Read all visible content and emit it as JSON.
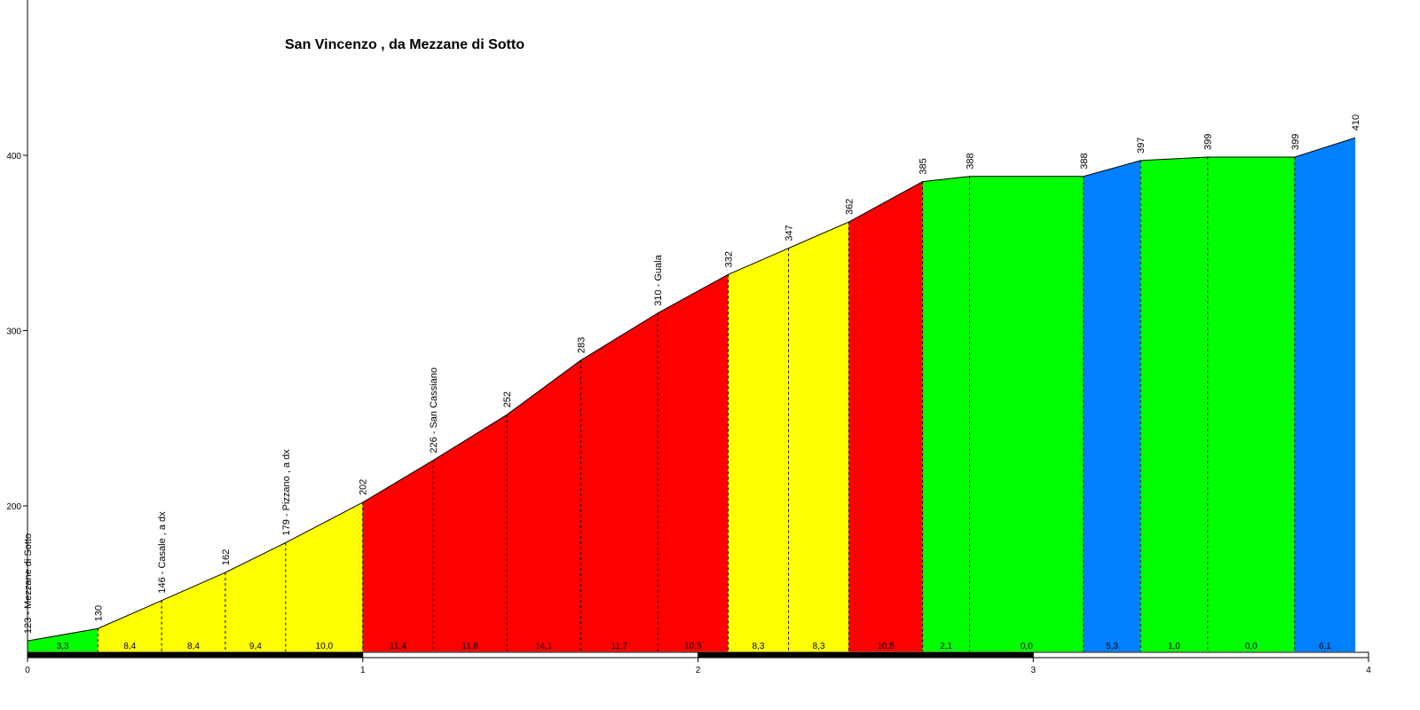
{
  "chart_data": {
    "type": "area",
    "title": "San Vincenzo , da Mezzane di Sotto",
    "xlabel": "",
    "ylabel": "",
    "xlim": [
      0,
      4
    ],
    "ylim": [
      115,
      490
    ],
    "x_ticks": [
      0,
      1,
      2,
      3,
      4
    ],
    "x_tick_labels": [
      "0",
      "1",
      "2",
      "3",
      "4"
    ],
    "y_ticks": [
      200,
      300,
      400
    ],
    "y_tick_labels": [
      "200",
      "300",
      "400"
    ],
    "points": [
      {
        "x": 0.0,
        "y": 123,
        "label": "123 - Mezzane di Sotto"
      },
      {
        "x": 0.21,
        "y": 130,
        "label": "130"
      },
      {
        "x": 0.4,
        "y": 146,
        "label": "146 - Casale , a dx"
      },
      {
        "x": 0.59,
        "y": 162,
        "label": "162"
      },
      {
        "x": 0.77,
        "y": 179,
        "label": "179 - Pizzano , a dx"
      },
      {
        "x": 1.0,
        "y": 202,
        "label": "202"
      },
      {
        "x": 1.21,
        "y": 226,
        "label": "226 - San Cassiano"
      },
      {
        "x": 1.43,
        "y": 252,
        "label": "252"
      },
      {
        "x": 1.65,
        "y": 283,
        "label": "283"
      },
      {
        "x": 1.88,
        "y": 310,
        "label": "310 - Guala"
      },
      {
        "x": 2.09,
        "y": 332,
        "label": "332"
      },
      {
        "x": 2.27,
        "y": 347,
        "label": "347"
      },
      {
        "x": 2.45,
        "y": 362,
        "label": "362"
      },
      {
        "x": 2.67,
        "y": 385,
        "label": "385"
      },
      {
        "x": 2.81,
        "y": 388,
        "label": "388"
      },
      {
        "x": 3.15,
        "y": 388,
        "label": "388"
      },
      {
        "x": 3.32,
        "y": 397,
        "label": "397"
      },
      {
        "x": 3.52,
        "y": 399,
        "label": "399"
      },
      {
        "x": 3.78,
        "y": 399,
        "label": "399"
      },
      {
        "x": 3.96,
        "y": 410,
        "label": "410"
      }
    ],
    "segments": [
      {
        "grade": "3,3",
        "color": "#00ff00"
      },
      {
        "grade": "8,4",
        "color": "#ffff00"
      },
      {
        "grade": "8,4",
        "color": "#ffff00"
      },
      {
        "grade": "9,4",
        "color": "#ffff00"
      },
      {
        "grade": "10,0",
        "color": "#ffff00"
      },
      {
        "grade": "11,4",
        "color": "#ff0000"
      },
      {
        "grade": "11,8",
        "color": "#ff0000"
      },
      {
        "grade": "14,1",
        "color": "#ff0000"
      },
      {
        "grade": "11,7",
        "color": "#ff0000"
      },
      {
        "grade": "10,5",
        "color": "#ff0000"
      },
      {
        "grade": "8,3",
        "color": "#ffff00"
      },
      {
        "grade": "8,3",
        "color": "#ffff00"
      },
      {
        "grade": "10,5",
        "color": "#ff0000"
      },
      {
        "grade": "2,1",
        "color": "#00ff00"
      },
      {
        "grade": "0,0",
        "color": "#00ff00"
      },
      {
        "grade": "5,3",
        "color": "#0080ff"
      },
      {
        "grade": "1,0",
        "color": "#00ff00"
      },
      {
        "grade": "0,0",
        "color": "#00ff00"
      },
      {
        "grade": "6,1",
        "color": "#0080ff"
      }
    ],
    "grid": false,
    "legend": "none"
  },
  "colors": {
    "axis": "#000000",
    "tick_text": "#000000",
    "km_bar_dark": "#000000",
    "km_bar_light": "#ffffff"
  }
}
